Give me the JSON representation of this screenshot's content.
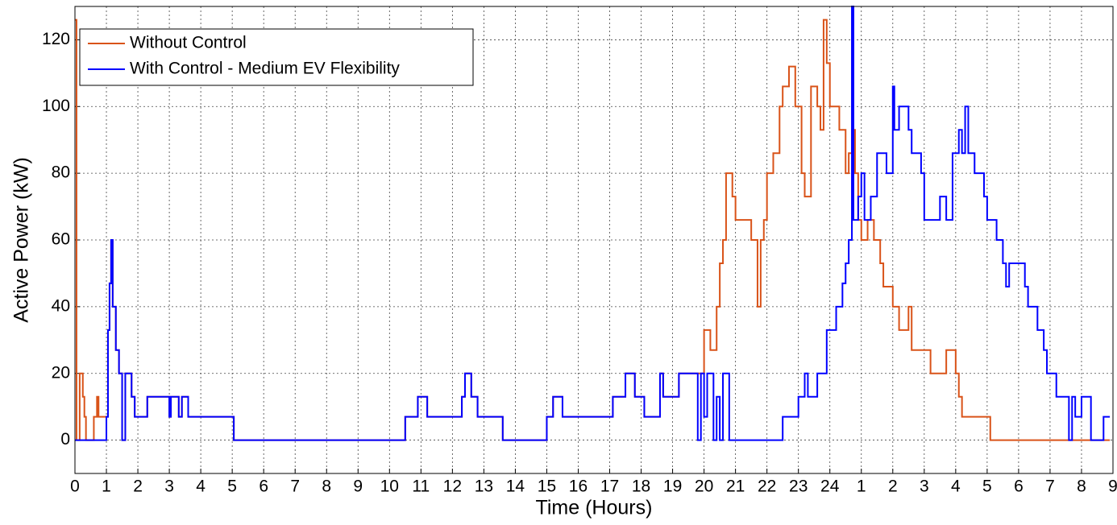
{
  "chart_data": {
    "type": "line",
    "drawstyle": "steps-post",
    "xlabel": "Time (Hours)",
    "ylabel": "Active Power (kW)",
    "xlim": [
      0,
      33
    ],
    "ylim": [
      -10,
      130
    ],
    "xticks": [
      0,
      1,
      2,
      3,
      4,
      5,
      6,
      7,
      8,
      9,
      10,
      11,
      12,
      13,
      14,
      15,
      16,
      17,
      18,
      19,
      20,
      21,
      22,
      23,
      24,
      {
        "value": 25,
        "label": "1"
      },
      {
        "value": 26,
        "label": "2"
      },
      {
        "value": 27,
        "label": "3"
      },
      {
        "value": 28,
        "label": "4"
      },
      {
        "value": 29,
        "label": "5"
      },
      {
        "value": 30,
        "label": "6"
      },
      {
        "value": 31,
        "label": "7"
      },
      {
        "value": 32,
        "label": "8"
      },
      {
        "value": 33,
        "label": "9"
      }
    ],
    "yticks": [
      0,
      20,
      40,
      60,
      80,
      100,
      120
    ],
    "grid": true,
    "legend": "upper left",
    "series": [
      {
        "name": "Without Control",
        "color": "#d95319",
        "x": [
          0,
          0.05,
          0.15,
          0.25,
          0.3,
          0.35,
          0.6,
          0.7,
          0.75,
          1.0,
          1.05,
          1.1,
          1.15,
          1.2,
          1.3,
          1.4,
          1.5,
          1.6,
          1.8,
          1.9,
          2.3,
          3.0,
          3.05,
          3.3,
          3.4,
          3.6,
          5.05,
          10.5,
          10.9,
          11.2,
          12.3,
          12.4,
          12.6,
          12.8,
          13.6,
          15.0,
          15.2,
          15.5,
          17.1,
          17.5,
          17.8,
          18.1,
          18.6,
          18.7,
          19.2,
          19.85,
          20.0,
          20.2,
          20.4,
          20.5,
          20.6,
          20.7,
          20.9,
          21.0,
          21.5,
          21.7,
          21.8,
          21.9,
          22.0,
          22.2,
          22.4,
          22.5,
          22.7,
          22.9,
          23.1,
          23.2,
          23.4,
          23.6,
          23.7,
          23.8,
          23.9,
          24.0,
          24.3,
          24.5,
          24.6,
          24.7,
          24.8,
          24.9,
          25.0,
          25.2,
          25.4,
          25.6,
          25.7,
          26.0,
          26.2,
          26.5,
          26.6,
          27.2,
          27.7,
          28.0,
          28.1,
          28.2,
          29.1,
          32.9
        ],
        "values": [
          126,
          0,
          20,
          13,
          7,
          0,
          7,
          13,
          7,
          7,
          33,
          47,
          60,
          40,
          27,
          20,
          0,
          20,
          13,
          7,
          13,
          7,
          13,
          7,
          13,
          7,
          0,
          7,
          13,
          7,
          13,
          20,
          13,
          7,
          0,
          7,
          13,
          7,
          13,
          20,
          13,
          7,
          20,
          13,
          20,
          20,
          33,
          27,
          40,
          53,
          60,
          80,
          73,
          66,
          60,
          40,
          60,
          66,
          80,
          86,
          100,
          106,
          112,
          100,
          80,
          73,
          106,
          100,
          93,
          126,
          113,
          100,
          93,
          80,
          86,
          93,
          80,
          66,
          60,
          66,
          60,
          53,
          46,
          40,
          33,
          40,
          27,
          20,
          27,
          20,
          13,
          7,
          0,
          0
        ]
      },
      {
        "name": "With Control - Medium EV Flexibility",
        "color": "#0000ff",
        "x": [
          0,
          1.0,
          1.05,
          1.1,
          1.15,
          1.2,
          1.3,
          1.4,
          1.5,
          1.6,
          1.8,
          1.9,
          2.3,
          3.0,
          3.05,
          3.3,
          3.4,
          3.6,
          5.05,
          10.5,
          10.9,
          11.2,
          12.3,
          12.4,
          12.6,
          12.8,
          13.6,
          15.0,
          15.2,
          15.5,
          17.1,
          17.5,
          17.8,
          18.1,
          18.6,
          18.7,
          19.2,
          19.8,
          19.9,
          20.0,
          20.1,
          20.3,
          20.4,
          20.5,
          20.6,
          20.8,
          22.5,
          23.0,
          23.2,
          23.3,
          23.6,
          23.9,
          24.2,
          24.4,
          24.5,
          24.6,
          24.7,
          24.75,
          24.9,
          25.0,
          25.1,
          25.3,
          25.5,
          25.8,
          26.0,
          26.05,
          26.2,
          26.5,
          26.6,
          26.9,
          27.0,
          27.5,
          27.7,
          27.9,
          28.1,
          28.2,
          28.3,
          28.4,
          28.6,
          28.9,
          29.0,
          29.3,
          29.5,
          29.6,
          29.7,
          30.2,
          30.3,
          30.6,
          30.8,
          30.9,
          31.2,
          31.6,
          31.7,
          31.8,
          32.0,
          32.3,
          32.7,
          32.9
        ],
        "values": [
          0,
          7,
          33,
          47,
          60,
          40,
          27,
          20,
          0,
          20,
          13,
          7,
          13,
          7,
          13,
          7,
          13,
          7,
          0,
          7,
          13,
          7,
          13,
          20,
          13,
          7,
          0,
          7,
          13,
          7,
          13,
          20,
          13,
          7,
          20,
          13,
          20,
          0,
          20,
          7,
          20,
          0,
          13,
          0,
          20,
          0,
          7,
          13,
          20,
          13,
          20,
          33,
          40,
          47,
          53,
          60,
          130,
          66,
          73,
          80,
          66,
          73,
          86,
          80,
          106,
          93,
          100,
          93,
          86,
          80,
          66,
          73,
          66,
          86,
          93,
          86,
          100,
          86,
          80,
          73,
          66,
          60,
          53,
          46,
          53,
          46,
          40,
          33,
          27,
          20,
          13,
          0,
          13,
          7,
          13,
          0,
          7,
          7
        ]
      }
    ]
  }
}
